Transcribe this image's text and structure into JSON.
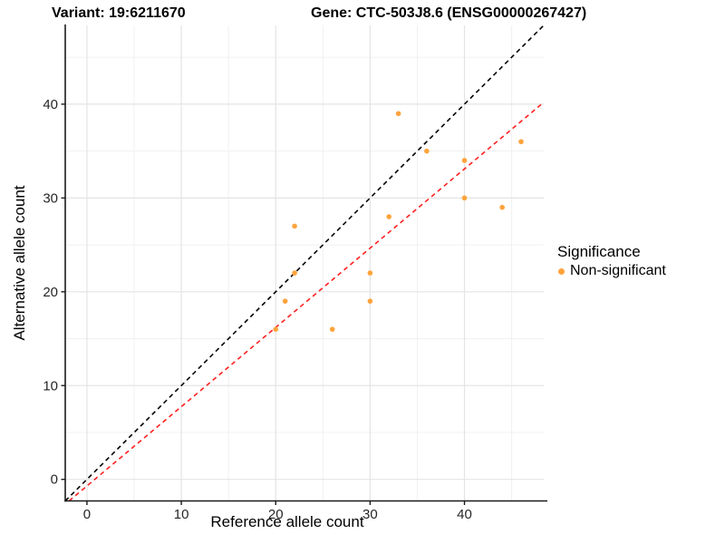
{
  "header": {
    "variant_title": "Variant: 19:6211670",
    "gene_title": "Gene: CTC-503J8.6 (ENSG00000267427)"
  },
  "legend": {
    "title": "Significance",
    "items": [
      {
        "label": "Non-significant",
        "color": "#FFA33C",
        "marker": "dot-icon"
      }
    ]
  },
  "chart_data": {
    "type": "scatter",
    "xlabel": "Reference allele count",
    "ylabel": "Alternative allele count",
    "xticks": [
      0,
      10,
      20,
      30,
      40
    ],
    "yticks": [
      0,
      10,
      20,
      30,
      40
    ],
    "xlim": [
      -2.3,
      48.4
    ],
    "ylim": [
      -2.3,
      48.4
    ],
    "minor_gridlines_x": [
      5,
      15,
      25,
      35,
      45
    ],
    "minor_gridlines_y": [
      5,
      15,
      25,
      35,
      45
    ],
    "grid": true,
    "legend_position": "right",
    "series": [
      {
        "name": "Non-significant",
        "color": "#FFA33C",
        "points": [
          [
            20,
            16
          ],
          [
            21,
            19
          ],
          [
            22,
            22
          ],
          [
            22,
            27
          ],
          [
            26,
            16
          ],
          [
            30,
            19
          ],
          [
            30,
            22
          ],
          [
            32,
            28
          ],
          [
            33,
            39
          ],
          [
            36,
            35
          ],
          [
            40,
            30
          ],
          [
            40,
            34
          ],
          [
            44,
            29
          ],
          [
            46,
            36
          ]
        ]
      }
    ],
    "reference_lines": [
      {
        "name": "identity-line",
        "slope": 1.0,
        "intercept": 0.0,
        "color": "#000000",
        "style": "dashed"
      },
      {
        "name": "expected-ratio-line",
        "slope": 0.845,
        "intercept": -0.7,
        "color": "#FF2020",
        "style": "dashed"
      }
    ]
  },
  "colors": {
    "background": "#FFFFFF",
    "grid_major": "#E4E4E4",
    "grid_minor": "#F1F1F1",
    "axis_line": "#1A1A1A",
    "tick_label": "#262626"
  }
}
